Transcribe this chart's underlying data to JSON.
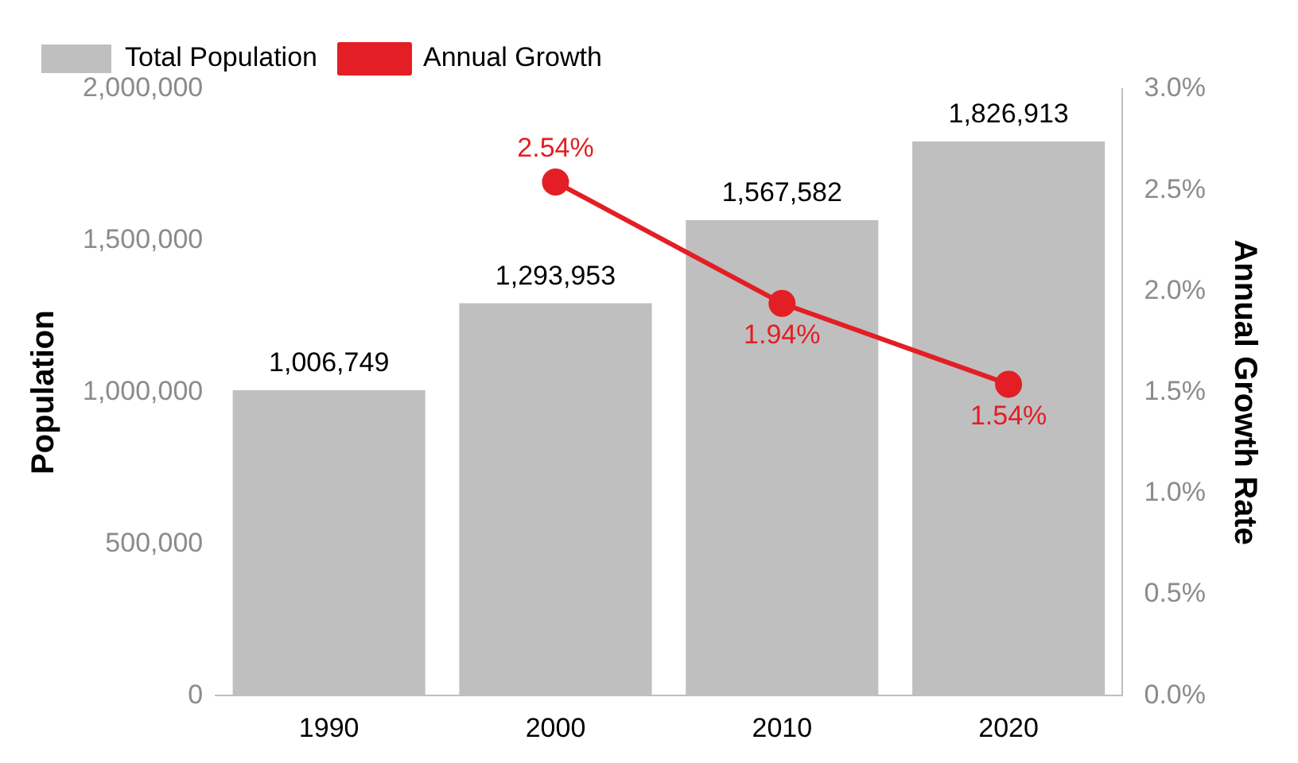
{
  "chart_data": {
    "type": "bar",
    "categories": [
      "1990",
      "2000",
      "2010",
      "2020"
    ],
    "series": [
      {
        "name": "Total Population",
        "color": "#bfbfbf",
        "values": [
          1006749,
          1293953,
          1567582,
          1826913
        ],
        "value_labels": [
          "1,006,749",
          "1,293,953",
          "1,567,582",
          "1,826,913"
        ]
      },
      {
        "name": "Annual Growth",
        "type": "line",
        "axis": "y2",
        "color": "#e31e24",
        "values": [
          null,
          2.54,
          1.94,
          1.54
        ],
        "value_labels": [
          null,
          "2.54%",
          "1.94%",
          "1.54%"
        ]
      }
    ],
    "ylabel": "Population",
    "y2label": "Annual Growth Rate",
    "ylim": [
      0,
      2000000
    ],
    "yticks": [
      {
        "value": 0,
        "label": "0"
      },
      {
        "value": 500000,
        "label": "500,000"
      },
      {
        "value": 1000000,
        "label": "1,000,000"
      },
      {
        "value": 1500000,
        "label": "1,500,000"
      },
      {
        "value": 2000000,
        "label": "2,000,000"
      }
    ],
    "y2lim": [
      0,
      3
    ],
    "y2ticks": [
      {
        "value": 0,
        "label": "0.0%"
      },
      {
        "value": 0.5,
        "label": "0.5%"
      },
      {
        "value": 1,
        "label": "1.0%"
      },
      {
        "value": 1.5,
        "label": "1.5%"
      },
      {
        "value": 2,
        "label": "2.0%"
      },
      {
        "value": 2.5,
        "label": "2.5%"
      },
      {
        "value": 3,
        "label": "3.0%"
      }
    ],
    "grid": false,
    "legend": "top left",
    "marker": "circle",
    "line_style": "solid"
  }
}
